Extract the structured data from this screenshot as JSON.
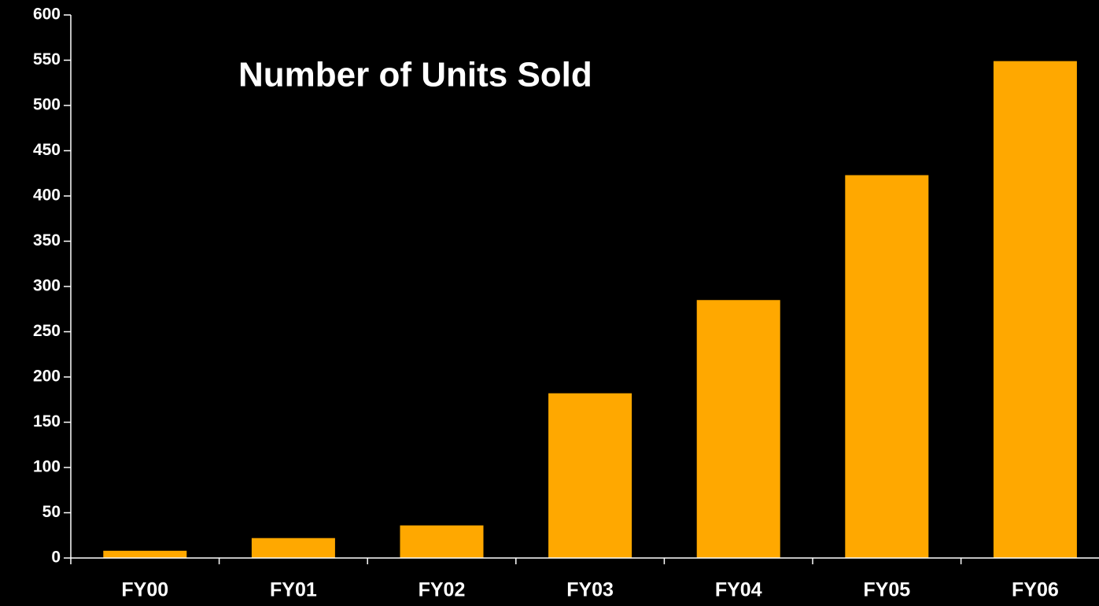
{
  "chart_data": {
    "type": "bar",
    "title": "Number of Units Sold",
    "categories": [
      "FY00",
      "FY01",
      "FY02",
      "FY03",
      "FY04",
      "FY05",
      "FY06"
    ],
    "values": [
      8,
      22,
      36,
      182,
      285,
      423,
      549
    ],
    "color": "#ffa800",
    "ylim": [
      0,
      600
    ],
    "yticks": [
      0,
      50,
      100,
      150,
      200,
      250,
      300,
      350,
      400,
      450,
      500,
      550,
      600
    ],
    "grid": false
  }
}
